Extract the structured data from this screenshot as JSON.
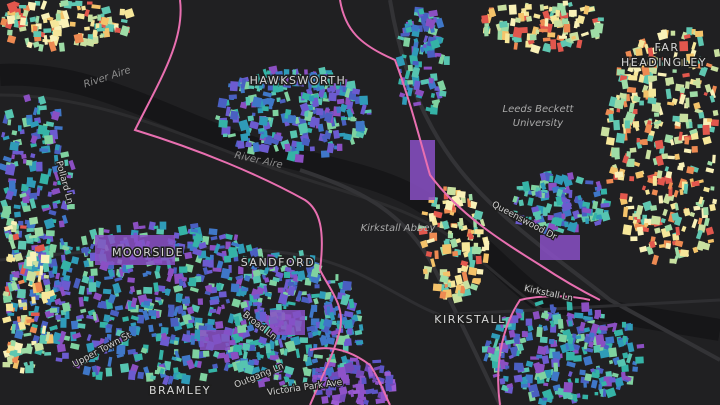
{
  "map": {
    "labels": [
      {
        "text": "HAWKSWORTH"
      },
      {
        "text": "River Aire"
      },
      {
        "text": "River Aire"
      },
      {
        "text": "Leeds Beckett"
      },
      {
        "text": "University"
      },
      {
        "text": "MOORSIDE"
      },
      {
        "text": "SANDFORD"
      },
      {
        "text": "Kirkstall Abbey"
      },
      {
        "text": "KIRKSTALL"
      },
      {
        "text": "BRAMLEY"
      },
      {
        "text": "Queenswood Dr"
      },
      {
        "text": "Broad Ln"
      },
      {
        "text": "Outgang Ln"
      },
      {
        "text": "Victoria Park Ave"
      },
      {
        "text": "Upper Town St"
      },
      {
        "text": "Kirkstall Ln"
      },
      {
        "text": "Pollard Ln"
      },
      {
        "text": "FAR"
      },
      {
        "text": "HEADINGLEY"
      }
    ]
  }
}
